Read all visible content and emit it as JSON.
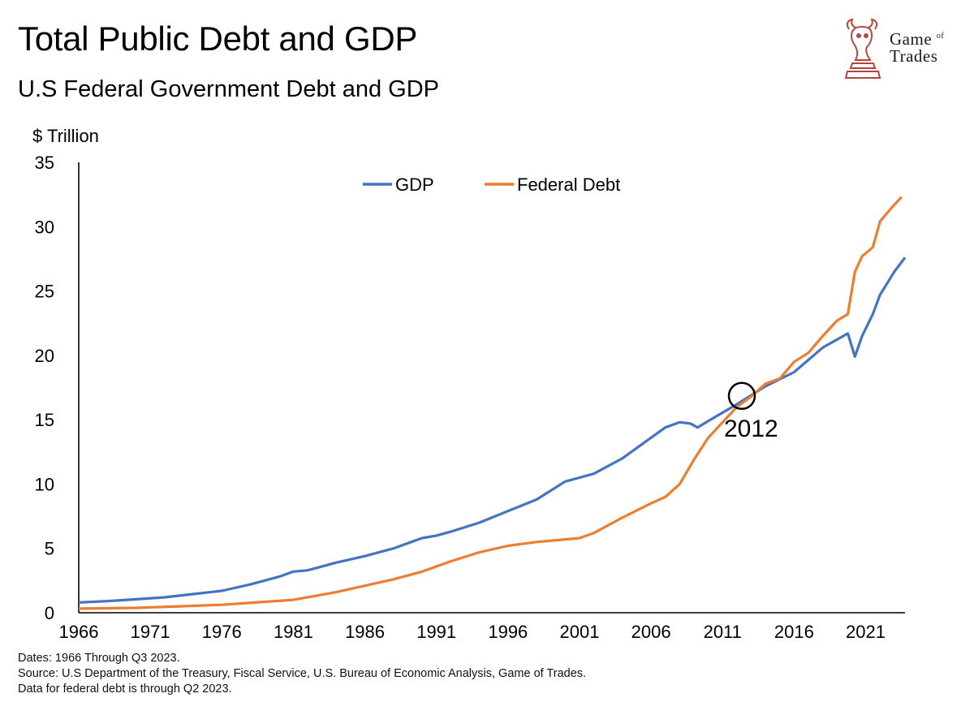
{
  "header": {
    "title": "Total Public Debt and GDP",
    "subtitle": "U.S Federal Government Debt and GDP"
  },
  "logo": {
    "line1_a": "Game",
    "line1_b": "of",
    "line2": "Trades",
    "accent": "#b5463c"
  },
  "notes": [
    "Dates: 1966 Through Q3 2023.",
    "Source: U.S Department of the Treasury, Fiscal Service, U.S. Bureau of Economic Analysis, Game of Trades.",
    "Data for federal debt is through Q2 2023."
  ],
  "chart_data": {
    "type": "line",
    "ylabel": "$ Trillion",
    "ylim": [
      0,
      35
    ],
    "xlim": [
      1966,
      2023.75
    ],
    "yticks": [
      0,
      5,
      10,
      15,
      20,
      25,
      30,
      35
    ],
    "xticks": [
      1966,
      1971,
      1976,
      1981,
      1986,
      1991,
      1996,
      2001,
      2006,
      2011,
      2016,
      2021
    ],
    "legend_position": "top-center",
    "grid": false,
    "annotation": {
      "text": "2012",
      "x": 2012.8,
      "y": 16.6
    },
    "series": [
      {
        "name": "GDP",
        "color": "#4472c4",
        "points": [
          [
            1966,
            0.8
          ],
          [
            1968,
            0.9
          ],
          [
            1970,
            1.05
          ],
          [
            1972,
            1.2
          ],
          [
            1974,
            1.45
          ],
          [
            1976,
            1.7
          ],
          [
            1978,
            2.2
          ],
          [
            1980,
            2.8
          ],
          [
            1981,
            3.2
          ],
          [
            1982,
            3.3
          ],
          [
            1984,
            3.9
          ],
          [
            1986,
            4.4
          ],
          [
            1988,
            5.0
          ],
          [
            1990,
            5.8
          ],
          [
            1991,
            6.0
          ],
          [
            1992,
            6.3
          ],
          [
            1994,
            7.0
          ],
          [
            1996,
            7.9
          ],
          [
            1998,
            8.8
          ],
          [
            2000,
            10.2
          ],
          [
            2001,
            10.5
          ],
          [
            2002,
            10.8
          ],
          [
            2004,
            12.0
          ],
          [
            2006,
            13.6
          ],
          [
            2007,
            14.4
          ],
          [
            2008,
            14.8
          ],
          [
            2008.75,
            14.7
          ],
          [
            2009.25,
            14.4
          ],
          [
            2010,
            14.9
          ],
          [
            2012,
            16.2
          ],
          [
            2014,
            17.6
          ],
          [
            2016,
            18.7
          ],
          [
            2018,
            20.6
          ],
          [
            2019.75,
            21.7
          ],
          [
            2020.25,
            19.9
          ],
          [
            2020.75,
            21.5
          ],
          [
            2021.5,
            23.2
          ],
          [
            2022,
            24.7
          ],
          [
            2023,
            26.5
          ],
          [
            2023.75,
            27.6
          ]
        ]
      },
      {
        "name": "Federal Debt",
        "color": "#ed7d31",
        "points": [
          [
            1966,
            0.32
          ],
          [
            1970,
            0.38
          ],
          [
            1976,
            0.62
          ],
          [
            1981,
            1.0
          ],
          [
            1984,
            1.6
          ],
          [
            1986,
            2.1
          ],
          [
            1988,
            2.6
          ],
          [
            1990,
            3.2
          ],
          [
            1992,
            4.0
          ],
          [
            1994,
            4.7
          ],
          [
            1996,
            5.2
          ],
          [
            1998,
            5.5
          ],
          [
            2000,
            5.7
          ],
          [
            2001,
            5.8
          ],
          [
            2002,
            6.2
          ],
          [
            2004,
            7.4
          ],
          [
            2006,
            8.5
          ],
          [
            2007,
            9.0
          ],
          [
            2008,
            10.0
          ],
          [
            2009,
            11.9
          ],
          [
            2010,
            13.6
          ],
          [
            2011,
            14.8
          ],
          [
            2012,
            16.0
          ],
          [
            2013,
            16.8
          ],
          [
            2014,
            17.8
          ],
          [
            2015,
            18.2
          ],
          [
            2016,
            19.5
          ],
          [
            2017,
            20.2
          ],
          [
            2018,
            21.5
          ],
          [
            2019,
            22.7
          ],
          [
            2019.75,
            23.2
          ],
          [
            2020.25,
            26.5
          ],
          [
            2020.75,
            27.7
          ],
          [
            2021.5,
            28.4
          ],
          [
            2022,
            30.4
          ],
          [
            2022.75,
            31.4
          ],
          [
            2023.5,
            32.3
          ]
        ]
      }
    ]
  }
}
